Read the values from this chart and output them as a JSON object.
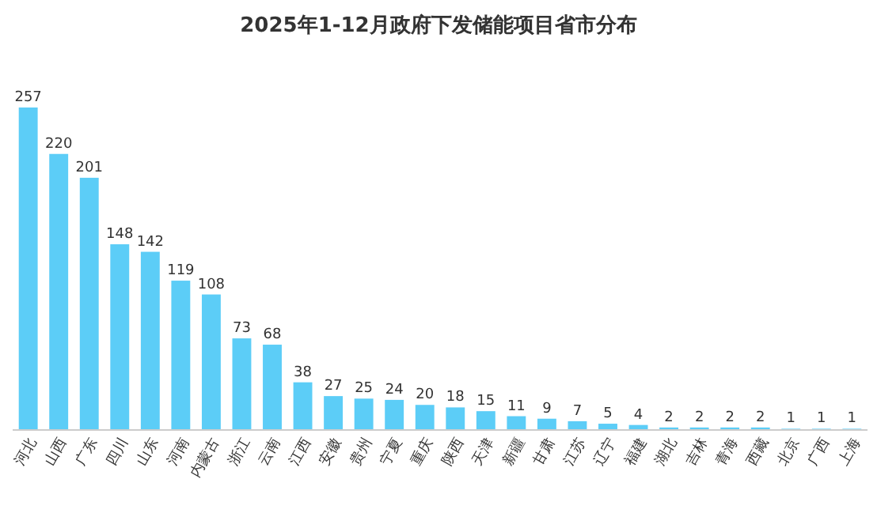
{
  "chart_data": {
    "type": "bar",
    "title": "2025年1-12月政府下发储能项目省市分布",
    "categories": [
      "河北",
      "山西",
      "广东",
      "四川",
      "山东",
      "河南",
      "内蒙古",
      "浙江",
      "云南",
      "江西",
      "安徽",
      "贵州",
      "宁夏",
      "重庆",
      "陕西",
      "天津",
      "新疆",
      "甘肃",
      "江苏",
      "辽宁",
      "福建",
      "湖北",
      "吉林",
      "青海",
      "西藏",
      "北京",
      "广西",
      "上海"
    ],
    "values": [
      257,
      220,
      201,
      148,
      142,
      119,
      108,
      73,
      68,
      38,
      27,
      25,
      24,
      20,
      18,
      15,
      11,
      9,
      7,
      5,
      4,
      2,
      2,
      2,
      2,
      1,
      1,
      1
    ],
    "color": "#5ccdf7",
    "data_labels": true
  }
}
